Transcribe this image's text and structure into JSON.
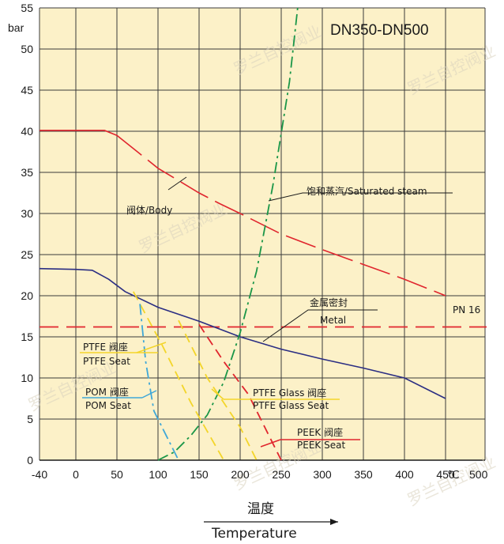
{
  "chart_data": {
    "type": "line",
    "title": "DN350-DN500",
    "ylabel": "bar",
    "xlabel_cn": "温度",
    "xlabel_en": "Temperature",
    "x_unit": "℃",
    "xlim": [
      -40,
      450
    ],
    "ylim": [
      0,
      55
    ],
    "x_ticks": [
      -40,
      0,
      50,
      100,
      150,
      200,
      250,
      300,
      350,
      400,
      450
    ],
    "x_extra_tick": 500,
    "y_ticks": [
      0,
      5,
      10,
      15,
      20,
      25,
      30,
      35,
      40,
      45,
      50,
      55
    ],
    "grid": true,
    "background": "#fcf1c8",
    "series": [
      {
        "name": "阀体/Body",
        "color": "#e0262e",
        "style": "mixed",
        "points": [
          [
            -40,
            40.1
          ],
          [
            35,
            40.1
          ],
          [
            50,
            39.5
          ],
          [
            75,
            37.5
          ],
          [
            100,
            35.5
          ],
          [
            125,
            34
          ],
          [
            150,
            32.5
          ],
          [
            175,
            31.2
          ],
          [
            200,
            30
          ],
          [
            250,
            27.5
          ],
          [
            300,
            25.6
          ],
          [
            350,
            23.8
          ],
          [
            400,
            22
          ],
          [
            450,
            20
          ]
        ]
      },
      {
        "name": "PN 16",
        "color": "#e0262e",
        "style": "dashed",
        "points": [
          [
            -40,
            16.2
          ],
          [
            500,
            16.2
          ]
        ]
      },
      {
        "name": "金属密封 Metal",
        "color": "#2b2e83",
        "style": "solid",
        "points": [
          [
            -40,
            23.3
          ],
          [
            0,
            23.2
          ],
          [
            20,
            23.1
          ],
          [
            40,
            22
          ],
          [
            60,
            20.5
          ],
          [
            100,
            18.6
          ],
          [
            150,
            16.9
          ],
          [
            200,
            15
          ],
          [
            250,
            13.5
          ],
          [
            300,
            12.3
          ],
          [
            350,
            11.2
          ],
          [
            400,
            10
          ],
          [
            450,
            7.5
          ]
        ]
      },
      {
        "name": "饱和蒸汽/Saturated steam",
        "color": "#1a9648",
        "style": "dashdot",
        "points": [
          [
            100,
            0
          ],
          [
            120,
            1
          ],
          [
            140,
            3
          ],
          [
            160,
            5.5
          ],
          [
            180,
            9.5
          ],
          [
            200,
            15.5
          ],
          [
            220,
            23
          ],
          [
            240,
            33.5
          ],
          [
            260,
            46
          ],
          [
            270,
            55
          ]
        ]
      },
      {
        "name": "PTFE Seat",
        "color": "#f3d52a",
        "style": "dashed",
        "points": [
          [
            70,
            20.5
          ],
          [
            105,
            14
          ],
          [
            140,
            7
          ],
          [
            180,
            0
          ]
        ]
      },
      {
        "name": "POM Seat",
        "color": "#3ea7d8",
        "style": "dashdot",
        "points": [
          [
            78,
            19
          ],
          [
            85,
            12
          ],
          [
            95,
            6
          ],
          [
            110,
            3
          ],
          [
            125,
            0
          ]
        ]
      },
      {
        "name": "PTFE Glass Seat",
        "color": "#f3d52a",
        "style": "dashed",
        "points": [
          [
            125,
            17
          ],
          [
            160,
            10
          ],
          [
            200,
            4
          ],
          [
            220,
            0
          ]
        ]
      },
      {
        "name": "PEEK Seat",
        "color": "#e0262e",
        "style": "dashed",
        "points": [
          [
            150,
            16.5
          ],
          [
            180,
            12
          ],
          [
            210,
            8
          ],
          [
            230,
            4
          ],
          [
            250,
            0
          ]
        ]
      }
    ],
    "labels": {
      "body": "阀体/Body",
      "steam": "饱和蒸汽/Saturated steam",
      "metal_cn": "金属密封",
      "metal_en": "Metal",
      "pn16": "PN 16",
      "ptfe_cn": "PTFE 阀座",
      "ptfe_en": "PTFE Seat",
      "pom_cn": "POM 阀座",
      "pom_en": "POM Seat",
      "ptfeg_cn": "PTFE Glass 阀座",
      "ptfeg_en": "PTFE Glass Seat",
      "peek_cn": "PEEK 阀座",
      "peek_en": "PEEK Seat"
    }
  },
  "watermark": "罗兰自控阀业"
}
